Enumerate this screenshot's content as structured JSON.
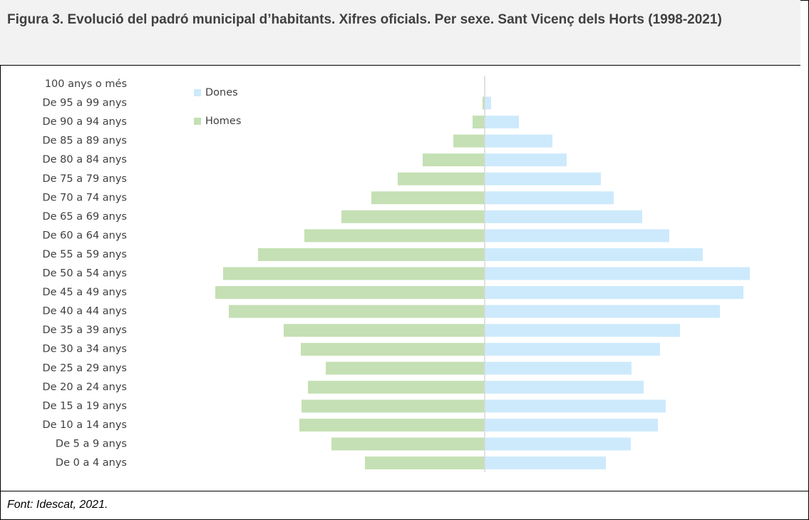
{
  "chart_data": {
    "type": "pyramid",
    "title": "Figura 3. Evolució del padró municipal d’habitants. Xifres oficials. Per sexe. Sant Vicenç dels Horts (1998-2021)",
    "source": "Font: Idescat, 2021.",
    "categories": [
      "100 anys o més",
      "De 95 a 99 anys",
      "De 90 a 94 anys",
      "De 85 a 89 anys",
      "De 80 a 84 anys",
      "De 75 a 79 anys",
      "De 70 a 74 anys",
      "De 65 a 69 anys",
      "De 60 a 64 anys",
      "De 55 a 59 anys",
      "De 50 a 54 anys",
      "De 45 a 49 anys",
      "De 40 a 44 anys",
      "De 35 a 39 anys",
      "De 30 a 34 anys",
      "De 25 a 29 anys",
      "De 20 a 24 anys",
      "De 15 a 19 anys",
      "De 10 a 14 anys",
      "De 5 a 9 anys",
      "De 0 a 4 anys"
    ],
    "series": [
      {
        "name": "Dones",
        "color": "#cdeafc",
        "values": [
          1,
          9,
          48,
          95,
          115,
          163,
          181,
          221,
          259,
          306,
          372,
          363,
          330,
          274,
          246,
          206,
          223,
          254,
          243,
          205,
          170
        ]
      },
      {
        "name": "Homes",
        "color": "#c5e0b4",
        "values": [
          0,
          3,
          17,
          44,
          87,
          122,
          159,
          201,
          253,
          318,
          367,
          378,
          359,
          282,
          258,
          223,
          248,
          257,
          260,
          215,
          168
        ]
      }
    ]
  }
}
